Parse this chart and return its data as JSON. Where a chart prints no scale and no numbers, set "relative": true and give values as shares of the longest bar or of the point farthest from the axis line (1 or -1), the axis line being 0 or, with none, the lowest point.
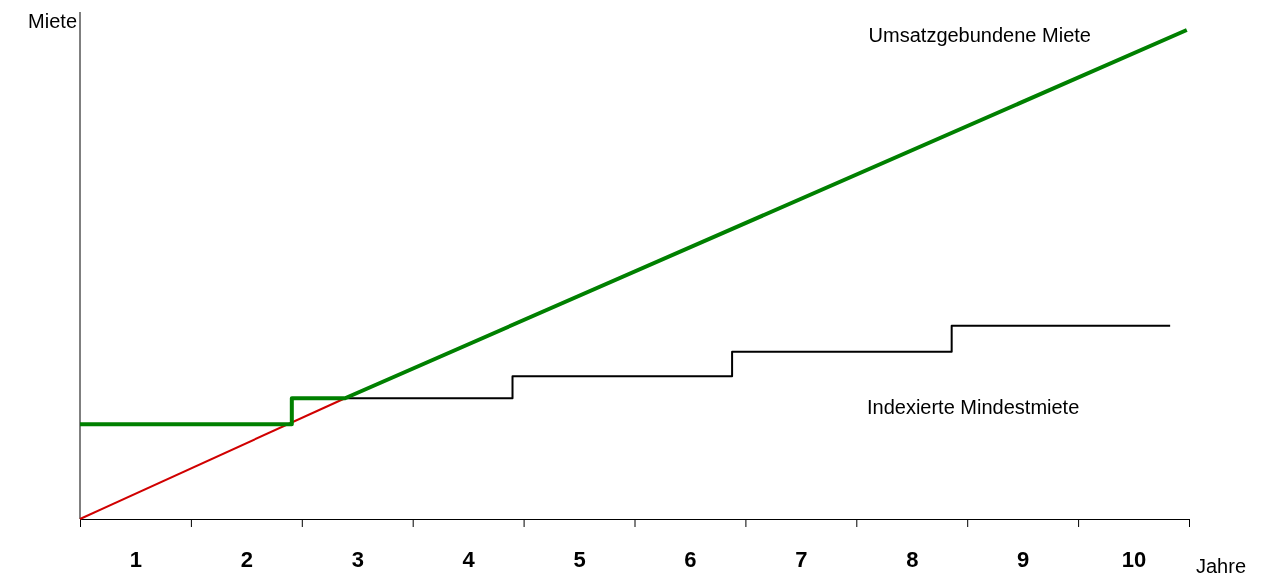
{
  "chart_data": {
    "type": "line",
    "relative": true,
    "xlabel": "Jahre",
    "ylabel": "Miete",
    "xlim": [
      0,
      10
    ],
    "xticks": [
      {
        "value": 0,
        "label": null
      },
      {
        "value": 0.5,
        "label": "1"
      },
      {
        "value": 1,
        "label": null
      },
      {
        "value": 1.5,
        "label": "2"
      },
      {
        "value": 2,
        "label": null
      },
      {
        "value": 2.5,
        "label": "3"
      },
      {
        "value": 3,
        "label": null
      },
      {
        "value": 3.5,
        "label": "4"
      },
      {
        "value": 4,
        "label": null
      },
      {
        "value": 4.5,
        "label": "5"
      },
      {
        "value": 5,
        "label": null
      },
      {
        "value": 5.5,
        "label": "6"
      },
      {
        "value": 6,
        "label": null
      },
      {
        "value": 6.5,
        "label": "7"
      },
      {
        "value": 7,
        "label": null
      },
      {
        "value": 7.5,
        "label": "8"
      },
      {
        "value": 8,
        "label": null
      },
      {
        "value": 8.5,
        "label": "9"
      },
      {
        "value": 9,
        "label": null
      },
      {
        "value": 9.5,
        "label": "10"
      },
      {
        "value": 10,
        "label": null
      }
    ],
    "ref_lines": [
      {
        "axis": "x",
        "value": 0,
        "color": "#000000"
      }
    ],
    "series": [
      {
        "color": "#d00000",
        "x": [
          0,
          2.39
        ],
        "values": [
          0,
          0.247
        ]
      },
      {
        "name": "Umsatzgebundene Miete",
        "color": "#008000",
        "x": [
          0,
          1.91,
          1.91,
          2.39,
          9.98
        ],
        "values": [
          0.194,
          0.194,
          0.247,
          0.247,
          1
        ]
      },
      {
        "type": "step",
        "name": "Indexierte Mindestmiete",
        "color": "#000000",
        "x": [
          2.39,
          3.9,
          5.88,
          7.86,
          9.83
        ],
        "values": [
          0.247,
          0.292,
          0.342,
          0.395,
          0.395
        ]
      }
    ]
  }
}
